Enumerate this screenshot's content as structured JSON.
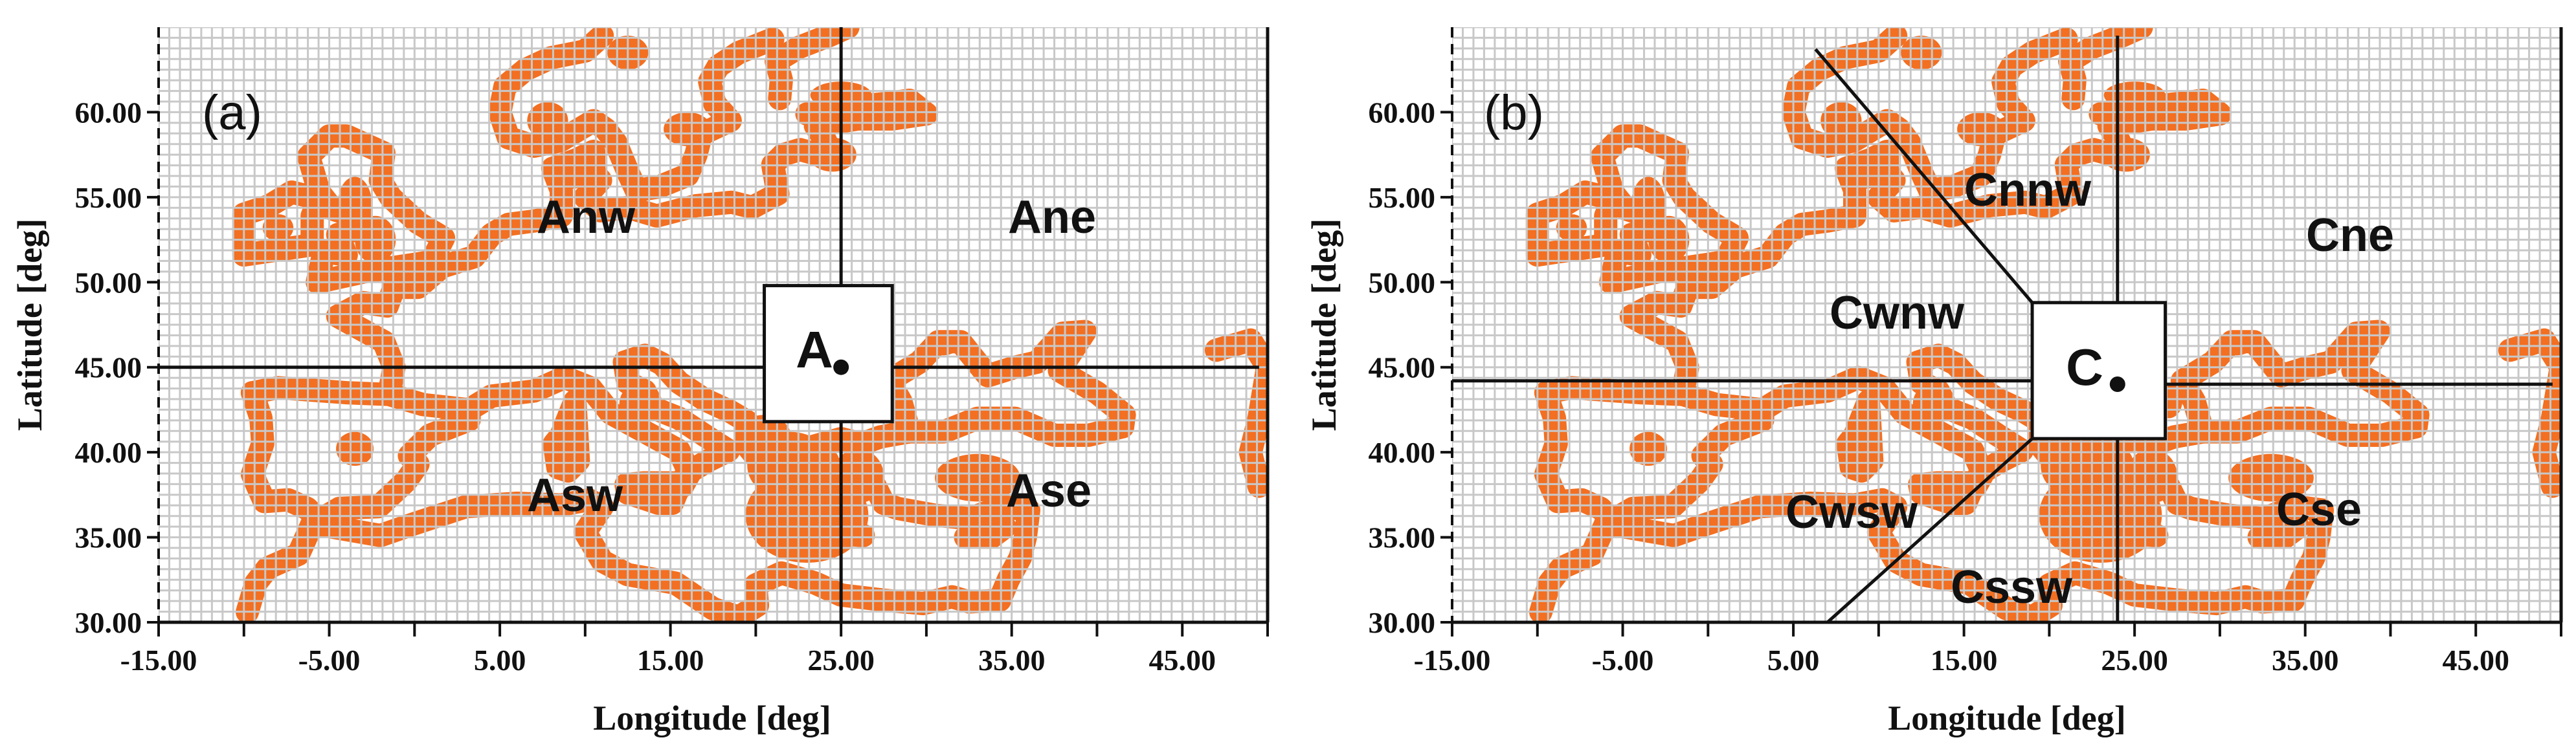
{
  "panels": [
    {
      "id": "a",
      "panel_label": "(a)",
      "xlabel": "Longitude [deg]",
      "ylabel": "Latitude [deg]",
      "x_ticks": [
        "-15.00",
        "-5.00",
        "5.00",
        "15.00",
        "25.00",
        "35.00",
        "45.00"
      ],
      "y_ticks": [
        "30.00",
        "35.00",
        "40.00",
        "45.00",
        "50.00",
        "55.00",
        "60.00"
      ],
      "center": {
        "label": "A",
        "lon": 25,
        "lat": 45
      },
      "regions": [
        {
          "label": "Anw"
        },
        {
          "label": "Ane"
        },
        {
          "label": "Asw"
        },
        {
          "label": "Ase"
        }
      ]
    },
    {
      "id": "b",
      "panel_label": "(b)",
      "xlabel": "Longitude [deg]",
      "ylabel": "Latitude [deg]",
      "x_ticks": [
        "-15.00",
        "-5.00",
        "5.00",
        "15.00",
        "25.00",
        "35.00",
        "45.00"
      ],
      "y_ticks": [
        "30.00",
        "35.00",
        "40.00",
        "45.00",
        "50.00",
        "55.00",
        "60.00"
      ],
      "center": {
        "label": "C",
        "lon": 24,
        "lat": 44
      },
      "regions": [
        {
          "label": "Cnnw"
        },
        {
          "label": "Cne"
        },
        {
          "label": "Cwnw"
        },
        {
          "label": "Cwsw"
        },
        {
          "label": "Cssw"
        },
        {
          "label": "Cse"
        }
      ]
    }
  ],
  "map_extent": {
    "lon": [
      -15,
      50
    ],
    "lat": [
      30,
      65
    ]
  },
  "colors": {
    "land": "#f36f21",
    "grid": "#c8c8c8",
    "lines": "#111111"
  }
}
